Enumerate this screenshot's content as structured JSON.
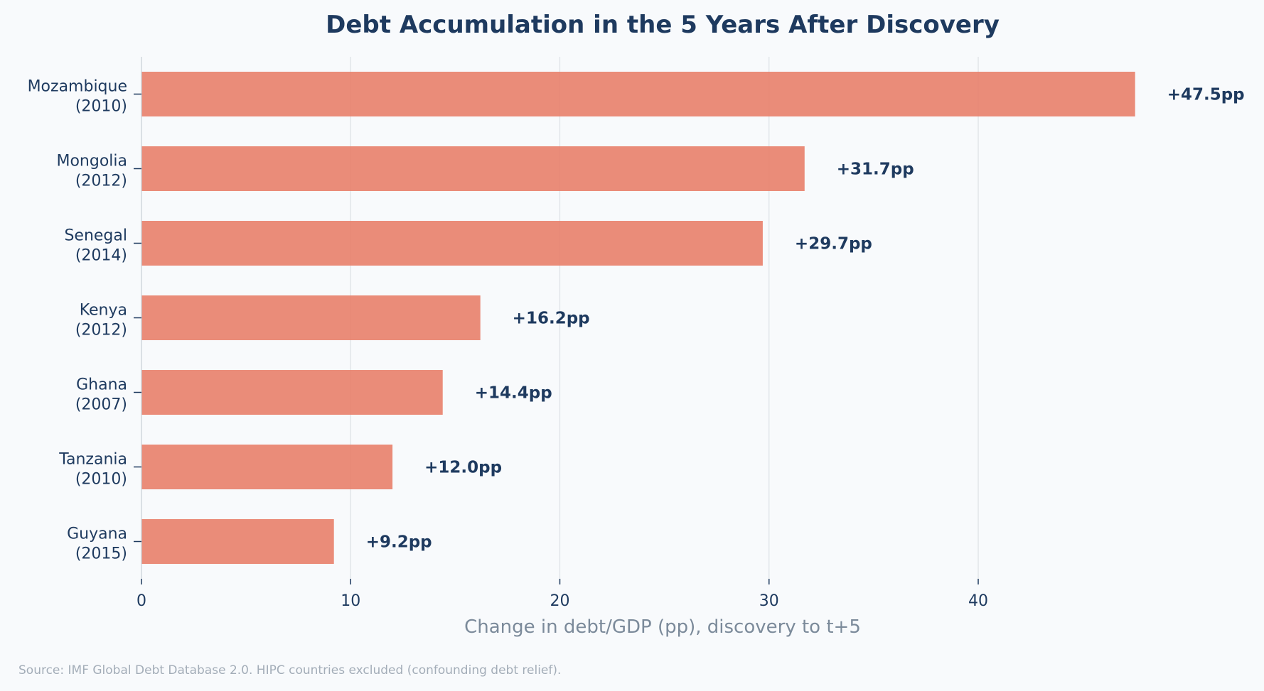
{
  "chart_data": {
    "type": "bar",
    "orientation": "horizontal",
    "title": "Debt Accumulation in the 5 Years After Discovery",
    "xlabel": "Change in debt/GDP (pp), discovery to t+5",
    "ylabel": "",
    "xlim": [
      0,
      49
    ],
    "x_ticks": [
      0,
      10,
      20,
      30,
      40
    ],
    "grid": "vertical",
    "categories": [
      {
        "country": "Mozambique",
        "year": "(2010)"
      },
      {
        "country": "Mongolia",
        "year": "(2012)"
      },
      {
        "country": "Senegal",
        "year": "(2014)"
      },
      {
        "country": "Kenya",
        "year": "(2012)"
      },
      {
        "country": "Ghana",
        "year": "(2007)"
      },
      {
        "country": "Tanzania",
        "year": "(2010)"
      },
      {
        "country": "Guyana",
        "year": "(2015)"
      }
    ],
    "values": [
      47.5,
      31.7,
      29.7,
      16.2,
      14.4,
      12.0,
      9.2
    ],
    "value_labels": [
      "+47.5pp",
      "+31.7pp",
      "+29.7pp",
      "+16.2pp",
      "+14.4pp",
      "+12.0pp",
      "+9.2pp"
    ],
    "bar_color": "#e8806a",
    "text_color": "#1e3a5f",
    "grid_color": "#dde1e6"
  },
  "footnote": "Source: IMF Global Debt Database 2.0.  HIPC countries excluded (confounding debt relief)."
}
